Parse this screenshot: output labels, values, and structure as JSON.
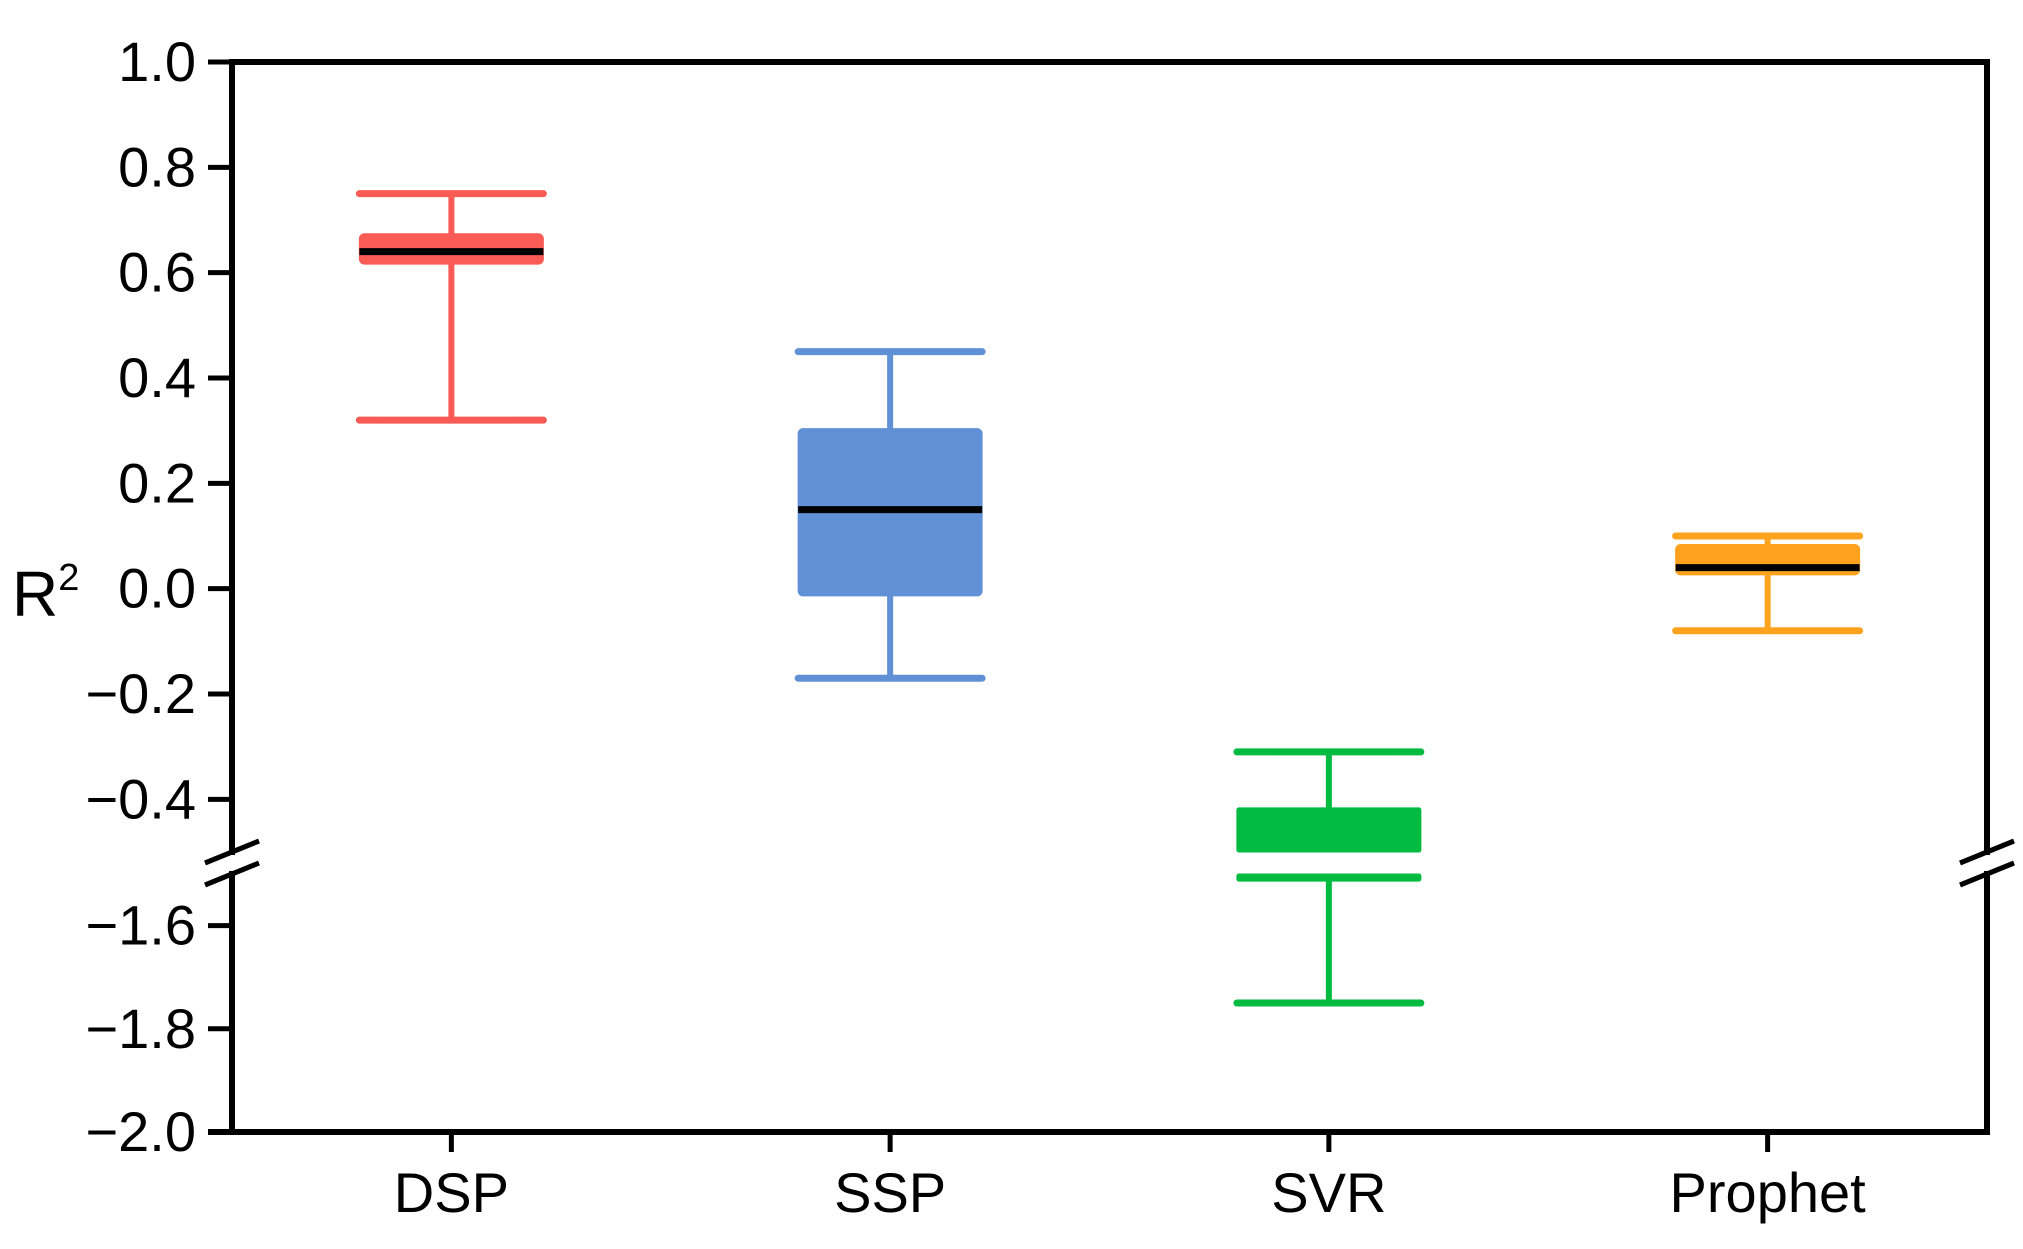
{
  "chart_data": {
    "type": "box",
    "title": "",
    "xlabel": "",
    "y_axis": {
      "label_base": "R",
      "label_superscript": "2",
      "upper_ticks": [
        {
          "value": 1.0,
          "label": "1.0"
        },
        {
          "value": 0.8,
          "label": "0.8"
        },
        {
          "value": 0.6,
          "label": "0.6"
        },
        {
          "value": 0.4,
          "label": "0.4"
        },
        {
          "value": 0.2,
          "label": "0.2"
        },
        {
          "value": 0.0,
          "label": "0.0"
        },
        {
          "value": -0.2,
          "label": "−0.2"
        },
        {
          "value": -0.4,
          "label": "−0.4"
        }
      ],
      "lower_ticks": [
        {
          "value": -1.6,
          "label": "−1.6"
        },
        {
          "value": -1.8,
          "label": "−1.8"
        },
        {
          "value": -2.0,
          "label": "−2.0"
        }
      ],
      "upper_range": [
        -0.5,
        1.0
      ],
      "lower_range": [
        -2.0,
        -1.5
      ],
      "axis_break": {
        "from": -0.5,
        "to": -1.5
      }
    },
    "categories": [
      "DSP",
      "SSP",
      "SVR",
      "Prophet"
    ],
    "series": [
      {
        "name": "DSP",
        "color": "#fb5b55",
        "whisker_low": 0.32,
        "q1": 0.62,
        "median": 0.64,
        "q3": 0.67,
        "whisker_high": 0.75
      },
      {
        "name": "SSP",
        "color": "#6090d6",
        "whisker_low": -0.17,
        "q1": -0.01,
        "median": 0.15,
        "q3": 0.3,
        "whisker_high": 0.45
      },
      {
        "name": "SVR",
        "color": "#00bb40",
        "whisker_low": -1.75,
        "q1": -1.51,
        "median": null,
        "q3": -0.42,
        "whisker_high": -0.31,
        "note": "box crosses axis break; median hidden in break"
      },
      {
        "name": "Prophet",
        "color": "#ffa21e",
        "whisker_low": -0.08,
        "q1": 0.03,
        "median": 0.04,
        "q3": 0.08,
        "whisker_high": 0.1
      }
    ],
    "median_color": "#000000",
    "axis_color": "#000000",
    "background_color": "#ffffff",
    "grid": "off",
    "legend": "none"
  }
}
